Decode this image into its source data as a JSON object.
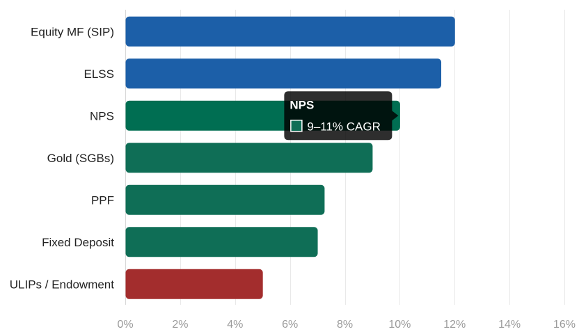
{
  "chart_data": {
    "type": "bar",
    "orientation": "horizontal",
    "categories": [
      "Equity MF (SIP)",
      "ELSS",
      "NPS",
      "Gold (SGBs)",
      "PPF",
      "Fixed Deposit",
      "ULIPs / Endowment"
    ],
    "values": [
      12,
      11.5,
      10,
      9,
      7.25,
      7,
      5
    ],
    "bar_colors": [
      "#1c5fa8",
      "#1c5fa8",
      "#006e52",
      "#0f6e56",
      "#0f6e56",
      "#0f6e56",
      "#a32d2d"
    ],
    "xlim": [
      0,
      16
    ],
    "xticks": [
      0,
      2,
      4,
      6,
      8,
      10,
      12,
      14,
      16
    ],
    "tick_suffix": "%",
    "grid": true,
    "title": "",
    "xlabel": "",
    "ylabel": "",
    "tooltip": {
      "category_index": 2,
      "title": "NPS",
      "text": "9–11% CAGR",
      "swatch_color": "#0f6e56"
    }
  }
}
